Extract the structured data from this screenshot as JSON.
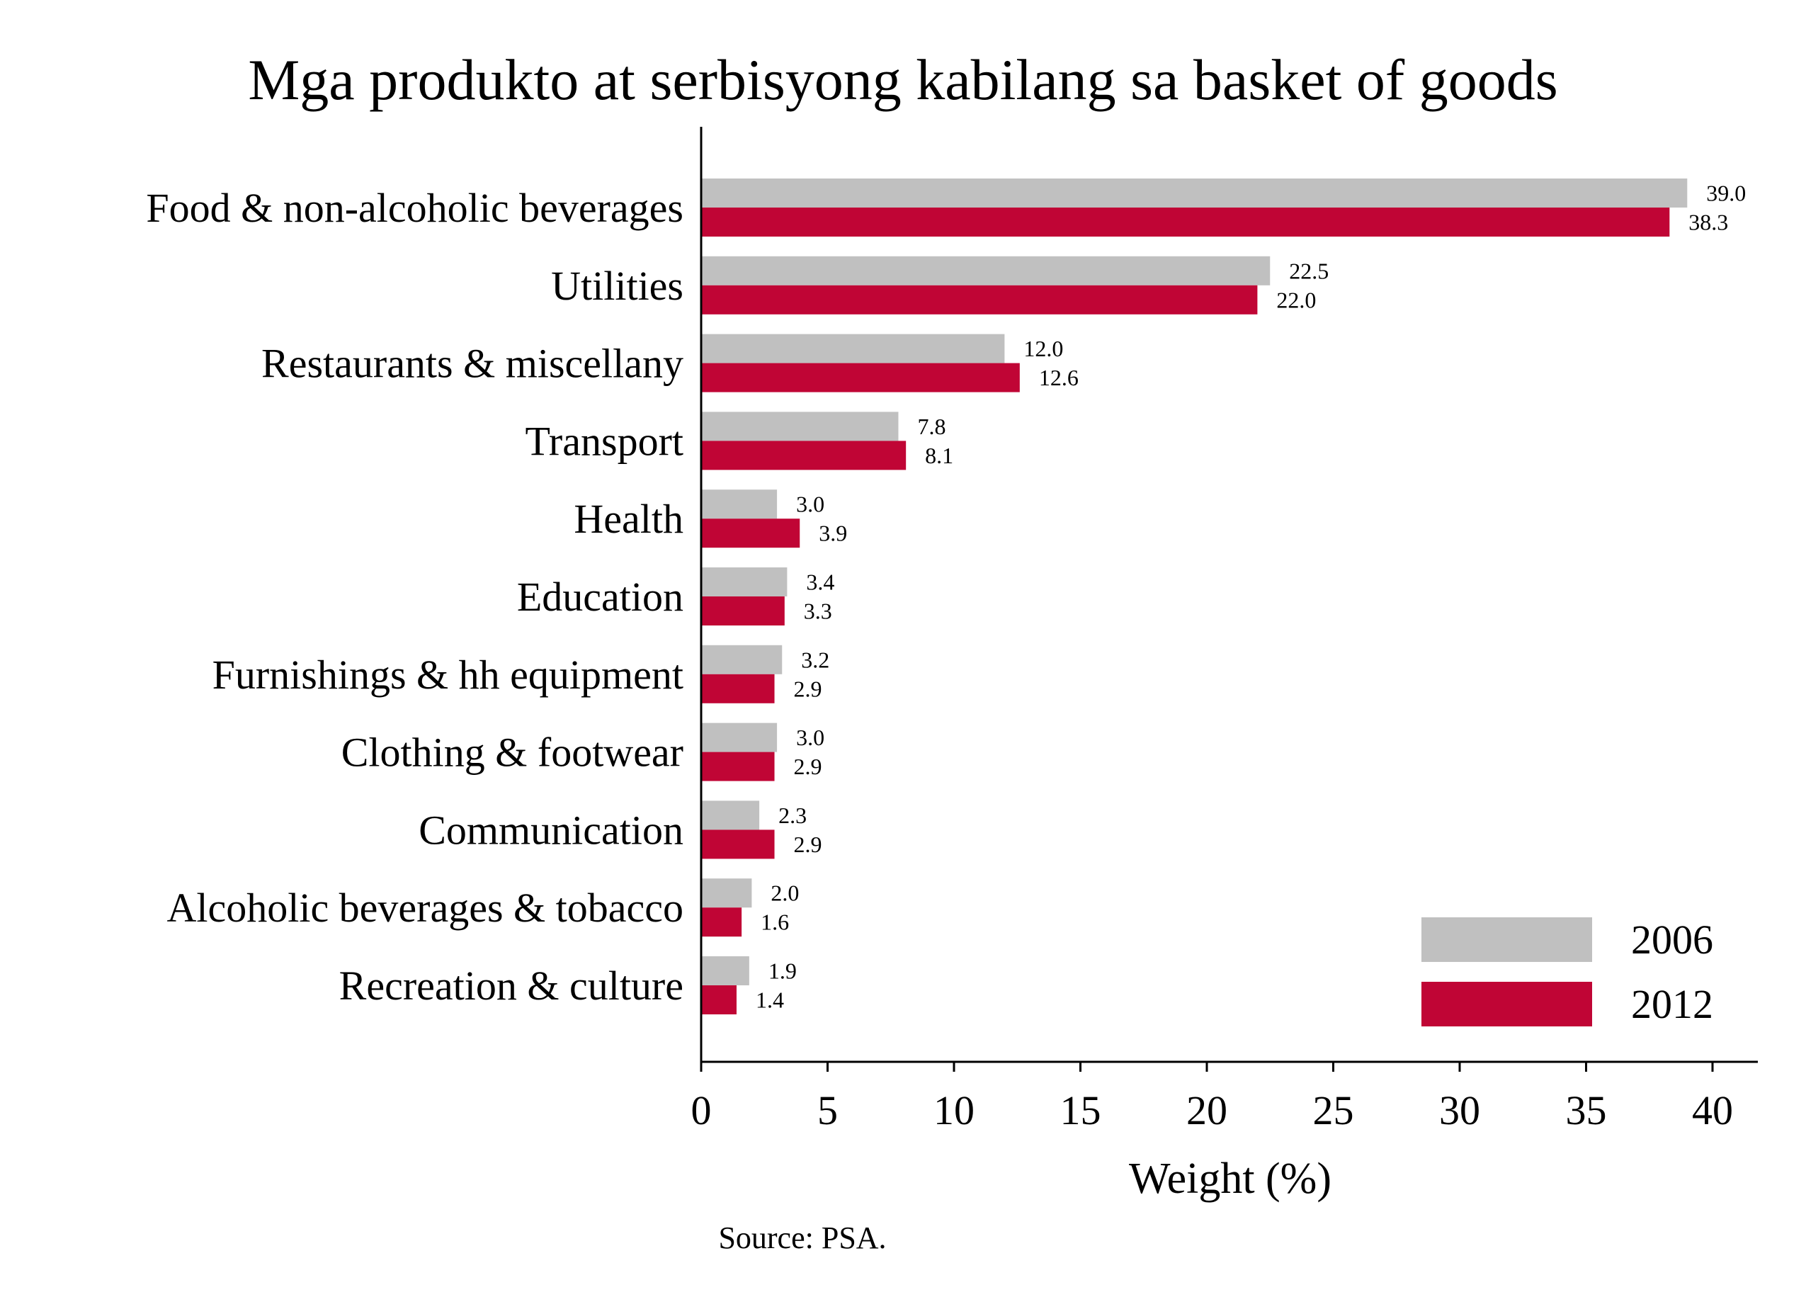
{
  "chart_data": {
    "type": "bar",
    "orientation": "horizontal",
    "title": "Mga produkto at serbisyong kabilang sa basket of goods",
    "xlabel": "Weight (%)",
    "ylabel": "",
    "xlim": [
      0,
      40
    ],
    "xticks": [
      0,
      5,
      10,
      15,
      20,
      25,
      30,
      35,
      40
    ],
    "grid": false,
    "legend_position": "bottom-right",
    "categories": [
      "Food & non-alcoholic beverages",
      "Utilities",
      "Restaurants & miscellany",
      "Transport",
      "Health",
      "Education",
      "Furnishings & hh equipment",
      "Clothing & footwear",
      "Communication",
      "Alcoholic beverages & tobacco",
      "Recreation & culture"
    ],
    "series": [
      {
        "name": "2006",
        "color": "#c0c0c0",
        "values": [
          39.0,
          22.5,
          12.0,
          7.8,
          3.0,
          3.4,
          3.2,
          3.0,
          2.3,
          2.0,
          1.9
        ],
        "labels": [
          "39.0",
          "22.5",
          "12.0",
          "7.8",
          "3.0",
          "3.4",
          "3.2",
          "3.0",
          "2.3",
          "2.0",
          "1.9"
        ]
      },
      {
        "name": "2012",
        "color": "#c00535",
        "values": [
          38.3,
          22.0,
          12.6,
          8.1,
          3.9,
          3.3,
          2.9,
          2.9,
          2.9,
          1.6,
          1.4
        ],
        "labels": [
          "38.3",
          "22.0",
          "12.6",
          "8.1",
          "3.9",
          "3.3",
          "2.9",
          "2.9",
          "2.9",
          "1.6",
          "1.4"
        ]
      }
    ],
    "source": "Source: PSA."
  }
}
